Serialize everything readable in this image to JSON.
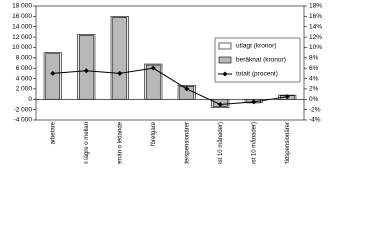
{
  "chart_data": {
    "type": "bar",
    "categories": [
      "arbetare",
      "tjänstemän lägre o mellan",
      "högre tjänstemän o ledande",
      "företgare",
      "ålderspensionärer",
      "arbetslösa (minst 10 månader)",
      "sjukskrivna (minst 10 månader)",
      "förtidspensionärer"
    ],
    "series": [
      {
        "name": "utlagt (kronor)",
        "type": "bar",
        "color": "#ffffff",
        "values": [
          9000,
          12500,
          16000,
          6800,
          2700,
          -1600,
          -600,
          800
        ]
      },
      {
        "name": "beräknat (kronor)",
        "type": "bar",
        "color": "#b8b8b8",
        "values": [
          8800,
          12300,
          15800,
          6600,
          2500,
          -1400,
          -700,
          700
        ]
      },
      {
        "name": "totalt (procent)",
        "type": "line",
        "axis": "y2",
        "color": "#000000",
        "values": [
          5,
          5.5,
          5,
          6,
          2,
          -1,
          -0.5,
          0.5
        ]
      }
    ],
    "ylim": [
      -4000,
      18000
    ],
    "yticks": [
      {
        "value": -4000,
        "label": "-4 000"
      },
      {
        "value": -2000,
        "label": "-2 000"
      },
      0,
      {
        "value": 2000,
        "label": "2 000"
      },
      {
        "value": 4000,
        "label": "4 000"
      },
      {
        "value": 6000,
        "label": "6 000"
      },
      {
        "value": 8000,
        "label": "8 000"
      },
      {
        "value": 10000,
        "label": "10 000"
      },
      {
        "value": 12000,
        "label": "12 000"
      },
      {
        "value": 14000,
        "label": "14 000"
      },
      {
        "value": 16000,
        "label": "16 000"
      },
      {
        "value": 18000,
        "label": "18 000"
      }
    ],
    "y2lim": [
      -4,
      18
    ],
    "y2ticks": [
      {
        "value": -4,
        "label": "-4%"
      },
      {
        "value": -2,
        "label": "-2%"
      },
      {
        "value": 0,
        "label": "0%"
      },
      {
        "value": 2,
        "label": "2%"
      },
      {
        "value": 4,
        "label": "4%"
      },
      {
        "value": 6,
        "label": "6%"
      },
      {
        "value": 8,
        "label": "8%"
      },
      {
        "value": 10,
        "label": "10%"
      },
      {
        "value": 12,
        "label": "12%"
      },
      {
        "value": 14,
        "label": "14%"
      },
      {
        "value": 16,
        "label": "16%"
      },
      {
        "value": 18,
        "label": "18%"
      }
    ],
    "legend": "right"
  }
}
